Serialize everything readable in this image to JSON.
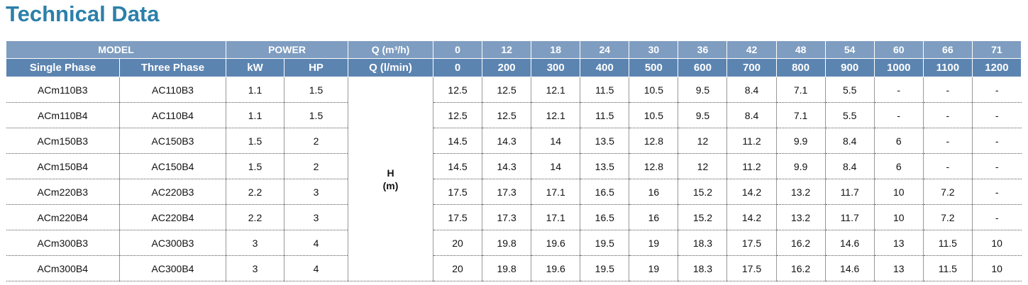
{
  "header": {
    "title": "Technical Data"
  },
  "table": {
    "header_rows": [
      [
        "MODEL",
        "POWER",
        "Q (m³/h)",
        "0",
        "12",
        "18",
        "24",
        "30",
        "36",
        "42",
        "48",
        "54",
        "60",
        "66",
        "71"
      ],
      [
        "Single Phase",
        "Three Phase",
        "kW",
        "HP",
        "Q (l/min)",
        "0",
        "200",
        "300",
        "400",
        "500",
        "600",
        "700",
        "800",
        "900",
        "1000",
        "1100",
        "1200"
      ]
    ],
    "h_label": "H\n(m)",
    "rows": [
      [
        "ACm110B3",
        "AC110B3",
        "1.1",
        "1.5",
        "12.5",
        "12.5",
        "12.1",
        "11.5",
        "10.5",
        "9.5",
        "8.4",
        "7.1",
        "5.5",
        "-",
        "-",
        "-"
      ],
      [
        "ACm110B4",
        "AC110B4",
        "1.1",
        "1.5",
        "12.5",
        "12.5",
        "12.1",
        "11.5",
        "10.5",
        "9.5",
        "8.4",
        "7.1",
        "5.5",
        "-",
        "-",
        "-"
      ],
      [
        "ACm150B3",
        "AC150B3",
        "1.5",
        "2",
        "14.5",
        "14.3",
        "14",
        "13.5",
        "12.8",
        "12",
        "11.2",
        "9.9",
        "8.4",
        "6",
        "-",
        "-"
      ],
      [
        "ACm150B4",
        "AC150B4",
        "1.5",
        "2",
        "14.5",
        "14.3",
        "14",
        "13.5",
        "12.8",
        "12",
        "11.2",
        "9.9",
        "8.4",
        "6",
        "-",
        "-"
      ],
      [
        "ACm220B3",
        "AC220B3",
        "2.2",
        "3",
        "17.5",
        "17.3",
        "17.1",
        "16.5",
        "16",
        "15.2",
        "14.2",
        "13.2",
        "11.7",
        "10",
        "7.2",
        "-"
      ],
      [
        "ACm220B4",
        "AC220B4",
        "2.2",
        "3",
        "17.5",
        "17.3",
        "17.1",
        "16.5",
        "16",
        "15.2",
        "14.2",
        "13.2",
        "11.7",
        "10",
        "7.2",
        "-"
      ],
      [
        "ACm300B3",
        "AC300B3",
        "3",
        "4",
        "20",
        "19.8",
        "19.6",
        "19.5",
        "19",
        "18.3",
        "17.5",
        "16.2",
        "14.6",
        "13",
        "11.5",
        "10"
      ],
      [
        "ACm300B4",
        "AC300B4",
        "3",
        "4",
        "20",
        "19.8",
        "19.6",
        "19.5",
        "19",
        "18.3",
        "17.5",
        "16.2",
        "14.6",
        "13",
        "11.5",
        "10"
      ]
    ]
  }
}
